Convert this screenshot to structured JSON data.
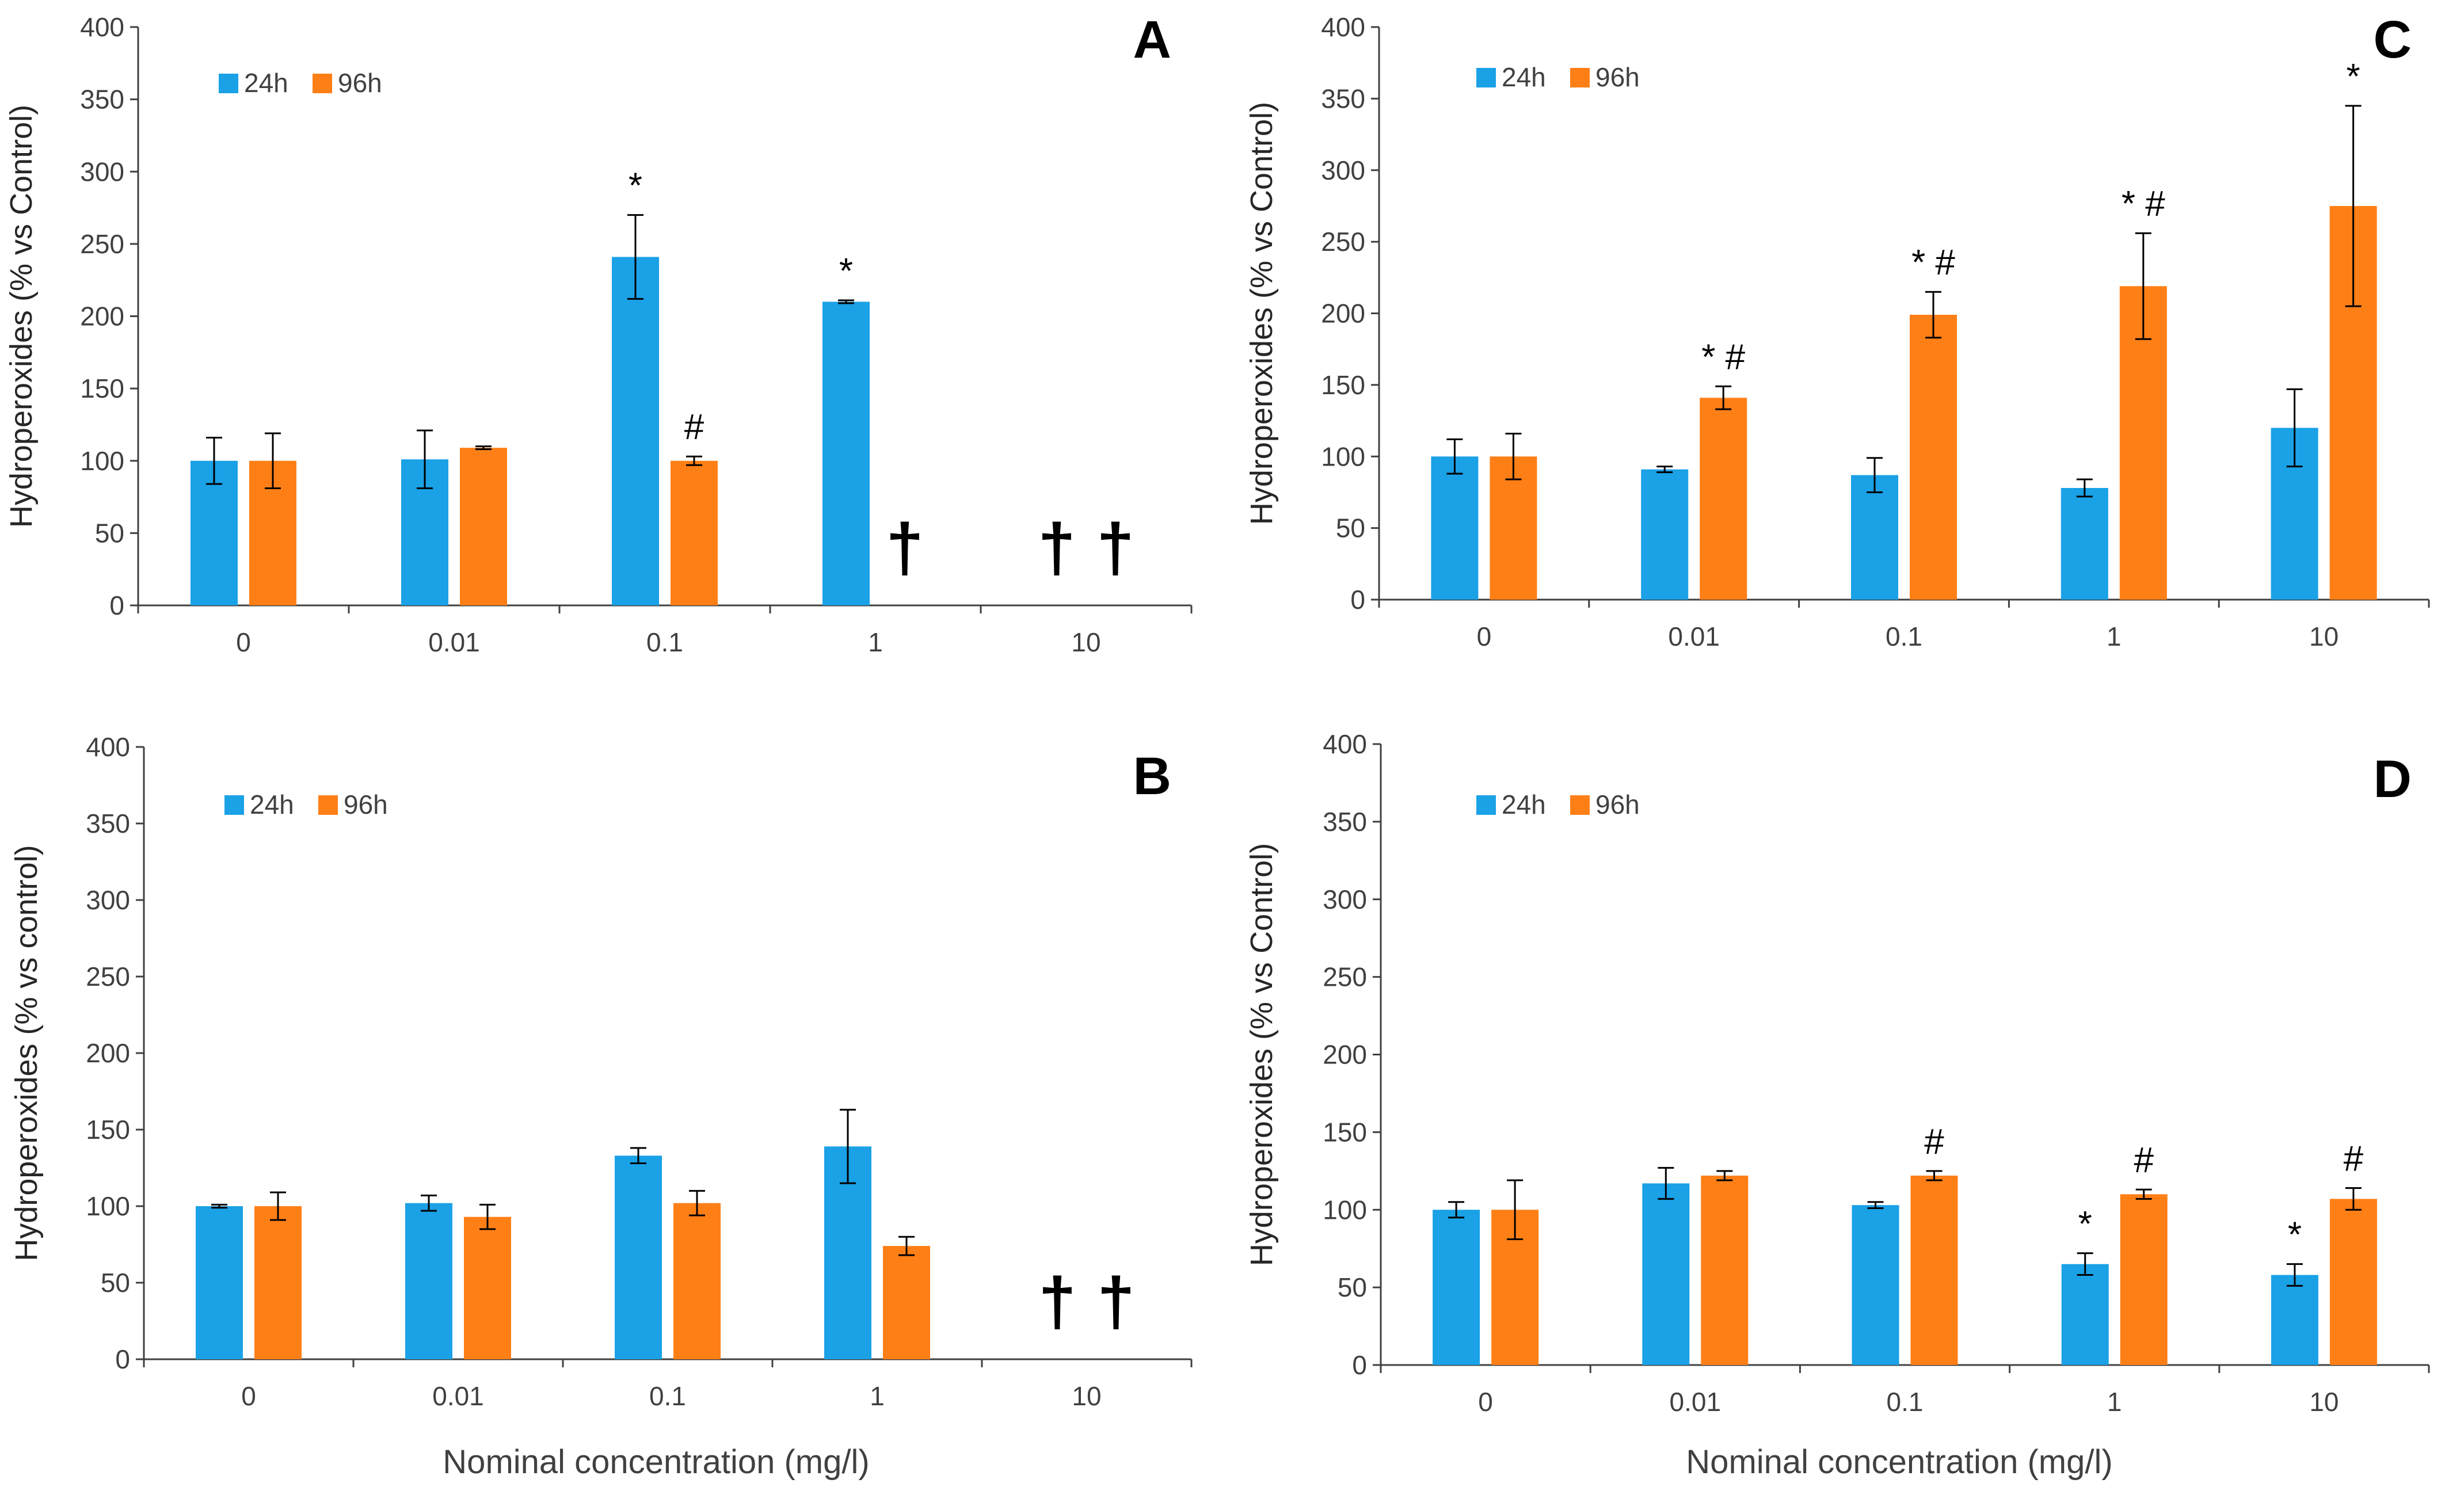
{
  "colors": {
    "24h": "#1aa1e6",
    "96h": "#ff7f17",
    "axis": "#404040"
  },
  "x_axis_title": "Nominal concentration (mg/l)",
  "chart_data": [
    {
      "id": "A",
      "type": "bar",
      "panel_label": "A",
      "ylabel": "Hydroperoxides (% vs Control)",
      "ylim": [
        0,
        400
      ],
      "yticks": [
        0,
        50,
        100,
        150,
        200,
        250,
        300,
        350,
        400
      ],
      "legend": [
        "24h",
        "96h"
      ],
      "categories": [
        "0",
        "0.01",
        "0.1",
        "1",
        "10"
      ],
      "series": [
        {
          "name": "24h",
          "values": [
            100,
            101,
            241,
            210,
            null
          ],
          "errors": [
            16,
            20,
            29,
            1,
            null
          ],
          "marks": [
            "",
            "",
            "*",
            "*",
            "†"
          ]
        },
        {
          "name": "96h",
          "values": [
            100,
            109,
            100,
            null,
            null
          ],
          "errors": [
            19,
            1,
            3,
            null,
            null
          ],
          "marks": [
            "",
            "",
            "#",
            "†",
            "†"
          ]
        }
      ]
    },
    {
      "id": "C",
      "type": "bar",
      "panel_label": "C",
      "ylabel": "Hydroperoxides (% vs Control)",
      "ylim": [
        0,
        400
      ],
      "yticks": [
        0,
        50,
        100,
        150,
        200,
        250,
        300,
        350,
        400
      ],
      "legend": [
        "24h",
        "96h"
      ],
      "categories": [
        "0",
        "0.01",
        "0.1",
        "1",
        "10"
      ],
      "series": [
        {
          "name": "24h",
          "values": [
            100,
            91,
            87,
            78,
            120
          ],
          "errors": [
            12,
            2,
            12,
            6,
            27
          ],
          "marks": [
            "",
            "",
            "",
            "",
            ""
          ]
        },
        {
          "name": "96h",
          "values": [
            100,
            141,
            199,
            219,
            275
          ],
          "errors": [
            16,
            8,
            16,
            37,
            70
          ],
          "marks": [
            "",
            "* #",
            "* #",
            "* #",
            "*"
          ]
        }
      ]
    },
    {
      "id": "B",
      "type": "bar",
      "panel_label": "B",
      "ylabel": "Hydroperoxides (% vs control)",
      "xlabel": "Nominal concentration (mg/l)",
      "ylim": [
        0,
        400
      ],
      "yticks": [
        0,
        50,
        100,
        150,
        200,
        250,
        300,
        350,
        400
      ],
      "legend": [
        "24h",
        "96h"
      ],
      "categories": [
        "0",
        "0.01",
        "0.1",
        "1",
        "10"
      ],
      "series": [
        {
          "name": "24h",
          "values": [
            100,
            102,
            133,
            139,
            null
          ],
          "errors": [
            1,
            5,
            5,
            24,
            null
          ],
          "marks": [
            "",
            "",
            "",
            "",
            "†"
          ]
        },
        {
          "name": "96h",
          "values": [
            100,
            93,
            102,
            74,
            null
          ],
          "errors": [
            9,
            8,
            8,
            6,
            null
          ],
          "marks": [
            "",
            "",
            "",
            "",
            "†"
          ]
        }
      ]
    },
    {
      "id": "D",
      "type": "bar",
      "panel_label": "D",
      "ylabel": "Hydroperoxides (% vs Control)",
      "xlabel": "Nominal concentration (mg/l)",
      "ylim": [
        0,
        400
      ],
      "yticks": [
        0,
        50,
        100,
        150,
        200,
        250,
        300,
        350,
        400
      ],
      "legend": [
        "24h",
        "96h"
      ],
      "categories": [
        "0",
        "0.01",
        "0.1",
        "1",
        "10"
      ],
      "series": [
        {
          "name": "24h",
          "values": [
            100,
            117,
            103,
            65,
            58
          ],
          "errors": [
            5,
            10,
            2,
            7,
            7
          ],
          "marks": [
            "",
            "",
            "",
            "*",
            "*"
          ]
        },
        {
          "name": "96h",
          "values": [
            100,
            122,
            122,
            110,
            107
          ],
          "errors": [
            19,
            3,
            3,
            3,
            7
          ],
          "marks": [
            "",
            "",
            "#",
            "#",
            "#"
          ]
        }
      ]
    }
  ]
}
